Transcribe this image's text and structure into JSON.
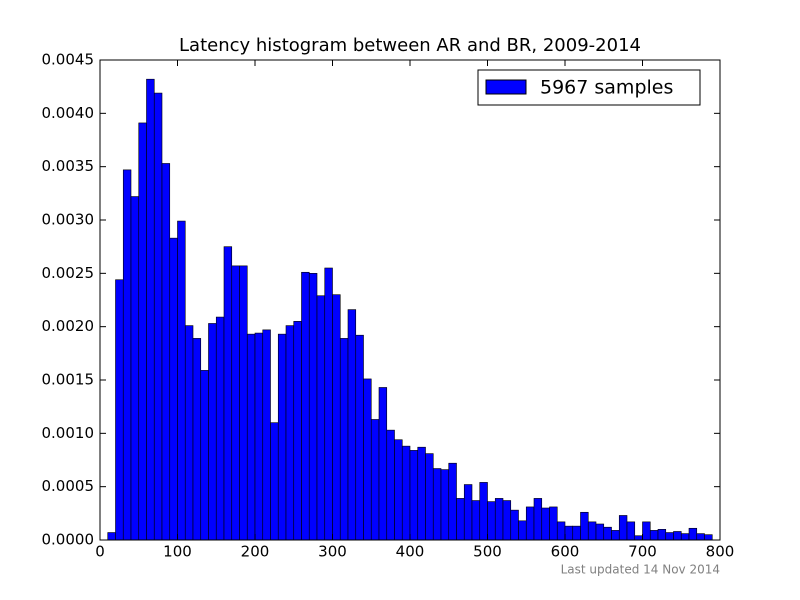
{
  "chart_data": {
    "type": "histogram",
    "title": "Latency histogram between AR and BR, 2009-2014",
    "footnote": "Last updated 14 Nov 2014",
    "legend": "upper right",
    "series": [
      {
        "name": "5967 samples",
        "color": "#0000ff",
        "edgecolor": "#000000",
        "values": [
          7e-05,
          0.00244,
          0.00347,
          0.00322,
          0.00391,
          0.00432,
          0.00419,
          0.00353,
          0.00283,
          0.00299,
          0.00201,
          0.00189,
          0.00159,
          0.00203,
          0.00209,
          0.00275,
          0.00257,
          0.00257,
          0.00193,
          0.00194,
          0.00197,
          0.0011,
          0.00193,
          0.00201,
          0.00205,
          0.00251,
          0.0025,
          0.00229,
          0.00255,
          0.0023,
          0.00189,
          0.00216,
          0.00192,
          0.00151,
          0.00113,
          0.00143,
          0.00103,
          0.00094,
          0.00088,
          0.00084,
          0.00087,
          0.00081,
          0.00067,
          0.00066,
          0.00072,
          0.00039,
          0.00052,
          0.00037,
          0.00054,
          0.00036,
          0.00039,
          0.00037,
          0.00028,
          0.00018,
          0.00031,
          0.00039,
          0.0003,
          0.00031,
          0.00017,
          0.00013,
          0.00013,
          0.00026,
          0.00017,
          0.00015,
          0.00012,
          9e-05,
          0.00023,
          0.00017,
          4e-05,
          0.00017,
          9e-05,
          0.0001,
          7e-05,
          8e-05,
          6e-05,
          0.00011,
          6e-05,
          5e-05
        ]
      }
    ],
    "bins": [
      10,
      20,
      30,
      40,
      50,
      60,
      70,
      80,
      90,
      100,
      110,
      120,
      130,
      140,
      150,
      160,
      170,
      180,
      190,
      200,
      210,
      220,
      230,
      240,
      250,
      260,
      270,
      280,
      290,
      300,
      310,
      320,
      330,
      340,
      350,
      360,
      370,
      380,
      390,
      400,
      410,
      420,
      430,
      440,
      450,
      460,
      470,
      480,
      490,
      500,
      510,
      520,
      530,
      540,
      550,
      560,
      570,
      580,
      590,
      600,
      610,
      620,
      630,
      640,
      650,
      660,
      670,
      680,
      690,
      700,
      710,
      720,
      730,
      740,
      750,
      760,
      770,
      780,
      790
    ],
    "xlim": [
      0,
      800
    ],
    "xticks": [
      0,
      100,
      200,
      300,
      400,
      500,
      600,
      700,
      800
    ],
    "ylim": [
      0,
      0.0045
    ],
    "yticks": [
      {
        "value": 0,
        "label": "0.0000"
      },
      {
        "value": 0.0005,
        "label": "0.0005"
      },
      {
        "value": 0.001,
        "label": "0.0010"
      },
      {
        "value": 0.0015,
        "label": "0.0015"
      },
      {
        "value": 0.002,
        "label": "0.0020"
      },
      {
        "value": 0.0025,
        "label": "0.0025"
      },
      {
        "value": 0.003,
        "label": "0.0030"
      },
      {
        "value": 0.0035,
        "label": "0.0035"
      },
      {
        "value": 0.004,
        "label": "0.0040"
      },
      {
        "value": 0.0045,
        "label": "0.0045"
      }
    ],
    "grid": false
  }
}
